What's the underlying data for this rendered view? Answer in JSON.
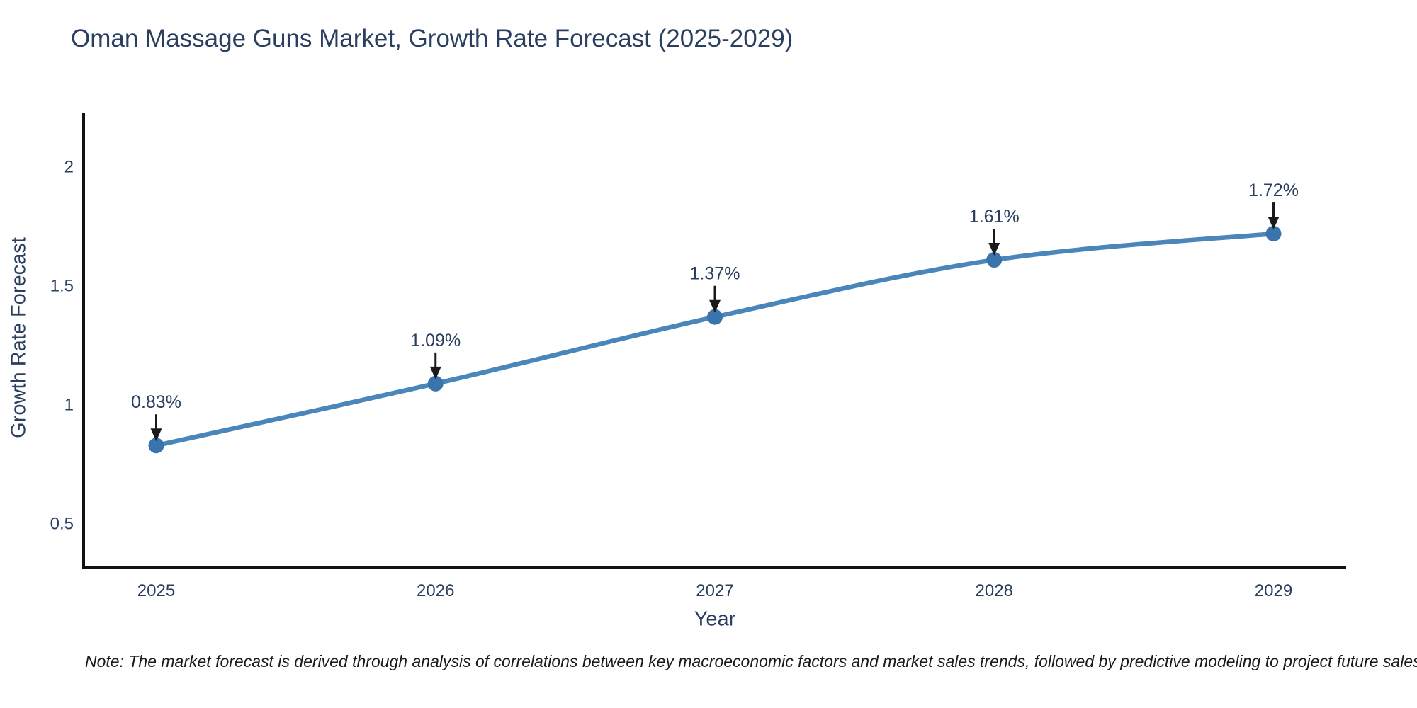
{
  "chart_data": {
    "type": "line",
    "title": "Oman Massage Guns Market, Growth Rate Forecast (2025-2029)",
    "xlabel": "Year",
    "ylabel": "Growth Rate Forecast",
    "x": [
      2025,
      2026,
      2027,
      2028,
      2029
    ],
    "series": [
      {
        "name": "Growth Rate Forecast",
        "values": [
          0.83,
          1.09,
          1.37,
          1.61,
          1.72
        ],
        "point_labels": [
          "0.83%",
          "1.09%",
          "1.37%",
          "1.61%",
          "1.72%"
        ]
      }
    ],
    "xticks": [
      2025,
      2026,
      2027,
      2028,
      2029
    ],
    "xtick_labels": [
      "2025",
      "2026",
      "2027",
      "2028",
      "2029"
    ],
    "yticks": [
      0.5,
      1,
      1.5,
      2
    ],
    "ytick_labels": [
      "0.5",
      "1",
      "1.5",
      "2"
    ],
    "xlim": [
      2024.74,
      2029.26
    ],
    "ylim": [
      0.316,
      2.226
    ],
    "grid": false,
    "legend": "none",
    "line_shape": "spline",
    "colors": {
      "line": "#4a86ba",
      "marker": "#3a74ad",
      "axis": "#111111",
      "text": "#2a3f5f",
      "annotation_text": "#2a3f5f",
      "arrow": "#1a1a1a",
      "background": "#ffffff"
    },
    "note": "Note: The market forecast is derived through analysis of correlations between key macroeconomic factors and market sales trends, followed by predictive modeling to project future sales"
  }
}
